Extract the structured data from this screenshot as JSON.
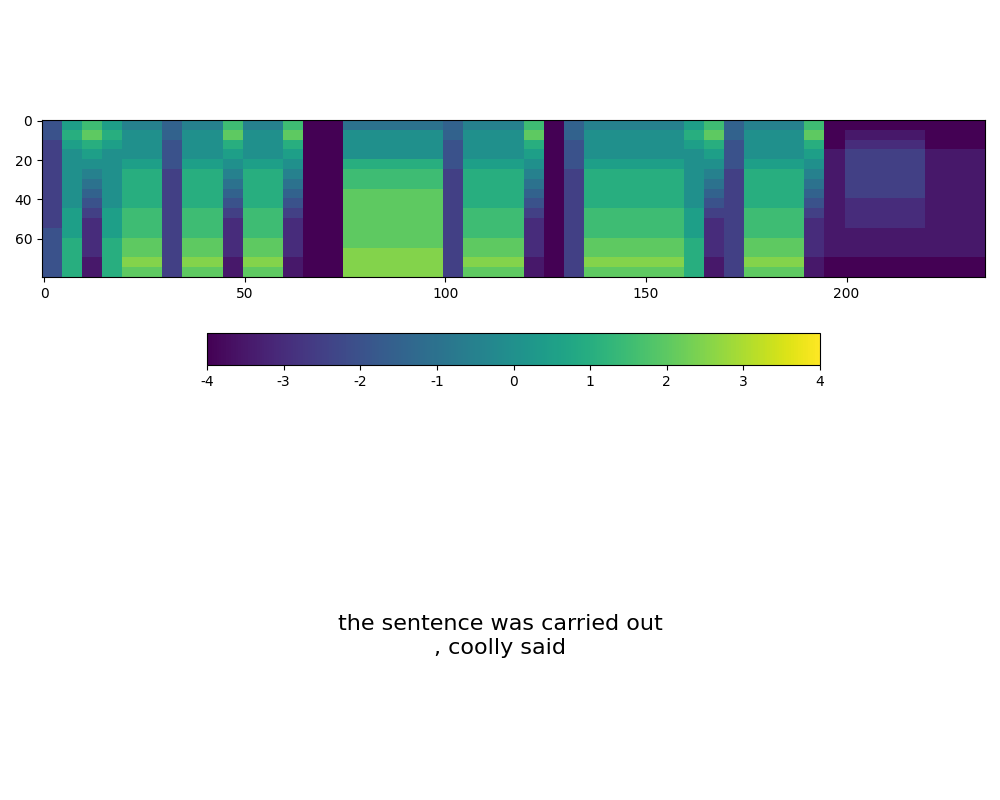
{
  "chart_data": {
    "type": "heatmap",
    "text": "the sentence was carried out\n, coolly said",
    "xlim": [
      -0.5,
      234.5
    ],
    "ylim": [
      79.5,
      -0.5
    ],
    "xticks": [
      0,
      50,
      100,
      150,
      200
    ],
    "yticks": [
      0,
      20,
      40,
      60
    ],
    "colorbar": {
      "range": [
        -4,
        4
      ],
      "ticks": [
        -4,
        -3,
        -2,
        -1,
        0,
        1,
        2,
        3,
        4
      ]
    },
    "cells": [
      [
        -2,
        0.5,
        1.5,
        0.5,
        -0.5,
        -0.5,
        -1.5,
        -0.5,
        -0.5,
        1.5,
        -0.5,
        -0.5,
        1.5,
        -4,
        -4,
        -1,
        -1,
        -1,
        -1,
        -1,
        -1.5,
        -0.5,
        -0.5,
        -0.5,
        1.5,
        -4,
        -1.5,
        -0.5,
        -0.5,
        -0.5,
        -0.5,
        -0.5,
        0.5,
        1.5,
        -1.5,
        -0.5,
        -0.5,
        -0.5,
        1.5,
        -4,
        -4,
        -4,
        -4,
        -4,
        -4,
        -4,
        -4
      ],
      [
        -2,
        1,
        2,
        1,
        0,
        0,
        -1.5,
        0,
        0,
        2,
        0,
        0,
        2,
        -4,
        -4,
        0,
        0,
        0,
        0,
        0,
        -1.5,
        0,
        0,
        0,
        2,
        -4,
        -1.5,
        0,
        0,
        0,
        0,
        0,
        1,
        2,
        -1.5,
        0,
        0,
        0,
        2,
        -4,
        -3.5,
        -3.5,
        -3.5,
        -3.5,
        -4,
        -4,
        -4
      ],
      [
        -2.5,
        0.5,
        1,
        0.5,
        0,
        0,
        -2,
        0,
        0,
        1,
        0,
        0,
        1,
        -4,
        -4,
        0,
        0,
        0,
        0,
        0,
        -2,
        0,
        0,
        0,
        1,
        -4,
        -2,
        0,
        0,
        0,
        0,
        0,
        0.5,
        1,
        -2,
        0,
        0,
        0,
        1,
        -4,
        -3,
        -3,
        -3,
        -3,
        -4,
        -4,
        -4
      ],
      [
        -2.5,
        0,
        0.5,
        0,
        0,
        0,
        -2,
        0,
        0,
        0.5,
        0,
        0,
        0.5,
        -4,
        -4,
        0,
        0,
        0,
        0,
        0,
        -2,
        0,
        0,
        0,
        0.5,
        -4,
        -2,
        0,
        0,
        0,
        0,
        0,
        0,
        0.5,
        -2,
        0,
        0,
        0,
        0.5,
        -3.5,
        -2.5,
        -2.5,
        -2.5,
        -2.5,
        -3.5,
        -3.5,
        -3.5
      ],
      [
        -2.5,
        0,
        0,
        0,
        0.5,
        0.5,
        -2,
        0.5,
        0.5,
        0,
        0.5,
        0.5,
        0,
        -4,
        -4,
        1,
        1,
        1,
        1,
        1,
        -2,
        0.5,
        0.5,
        0.5,
        0,
        -4,
        -2,
        0.5,
        0.5,
        0.5,
        0.5,
        0.5,
        0,
        0,
        -2,
        0.5,
        0.5,
        0.5,
        0,
        -3.5,
        -2.5,
        -2.5,
        -2.5,
        -2.5,
        -3.5,
        -3.5,
        -3.5
      ],
      [
        -2.5,
        0,
        -0.5,
        0,
        1,
        1,
        -2.5,
        1,
        1,
        -0.5,
        1,
        1,
        -0.5,
        -4,
        -4,
        1.5,
        1.5,
        1.5,
        1.5,
        1.5,
        -2.5,
        1,
        1,
        1,
        -0.5,
        -4,
        -2.5,
        1,
        1,
        1,
        1,
        1,
        0,
        -0.5,
        -2.5,
        1,
        1,
        1,
        -0.5,
        -3.5,
        -2.5,
        -2.5,
        -2.5,
        -2.5,
        -3.5,
        -3.5,
        -3.5
      ],
      [
        -2.5,
        0,
        -1,
        0,
        1,
        1,
        -2.5,
        1,
        1,
        -1,
        1,
        1,
        -1,
        -4,
        -4,
        1.5,
        1.5,
        1.5,
        1.5,
        1.5,
        -2.5,
        1,
        1,
        1,
        -1,
        -4,
        -2.5,
        1,
        1,
        1,
        1,
        1,
        0,
        -1,
        -2.5,
        1,
        1,
        1,
        -1,
        -3.5,
        -2.5,
        -2.5,
        -2.5,
        -2.5,
        -3.5,
        -3.5,
        -3.5
      ],
      [
        -2.5,
        0,
        -1.5,
        0,
        1,
        1,
        -2.5,
        1,
        1,
        -1.5,
        1,
        1,
        -1.5,
        -4,
        -4,
        2,
        2,
        2,
        2,
        2,
        -2.5,
        1,
        1,
        1,
        -1.5,
        -4,
        -2.5,
        1,
        1,
        1,
        1,
        1,
        0,
        -1.5,
        -2.5,
        1,
        1,
        1,
        -1.5,
        -3.5,
        -2.5,
        -2.5,
        -2.5,
        -2.5,
        -3.5,
        -3.5,
        -3.5
      ],
      [
        -2.5,
        0,
        -2,
        0,
        1,
        1,
        -2.5,
        1,
        1,
        -2,
        1,
        1,
        -2,
        -4,
        -4,
        2,
        2,
        2,
        2,
        2,
        -2.5,
        1,
        1,
        1,
        -2,
        -4,
        -2.5,
        1,
        1,
        1,
        1,
        1,
        0,
        -2,
        -2.5,
        1,
        1,
        1,
        -2,
        -3.5,
        -3,
        -3,
        -3,
        -3,
        -3.5,
        -3.5,
        -3.5
      ],
      [
        -2.5,
        0.5,
        -2.5,
        0.5,
        1.5,
        1.5,
        -2.5,
        1.5,
        1.5,
        -2.5,
        1.5,
        1.5,
        -2.5,
        -4,
        -4,
        2,
        2,
        2,
        2,
        2,
        -2.5,
        1.5,
        1.5,
        1.5,
        -2.5,
        -4,
        -2.5,
        1.5,
        1.5,
        1.5,
        1.5,
        1.5,
        0.5,
        -2.5,
        -2.5,
        1.5,
        1.5,
        1.5,
        -2.5,
        -3.5,
        -3,
        -3,
        -3,
        -3,
        -3.5,
        -3.5,
        -3.5
      ],
      [
        -2.5,
        0.5,
        -3,
        0.5,
        1.5,
        1.5,
        -2.5,
        1.5,
        1.5,
        -3,
        1.5,
        1.5,
        -3,
        -4,
        -4,
        2,
        2,
        2,
        2,
        2,
        -2.5,
        1.5,
        1.5,
        1.5,
        -3,
        -4,
        -2.5,
        1.5,
        1.5,
        1.5,
        1.5,
        1.5,
        0.5,
        -3,
        -2.5,
        1.5,
        1.5,
        1.5,
        -3,
        -3.5,
        -3,
        -3,
        -3,
        -3,
        -3.5,
        -3.5,
        -3.5
      ],
      [
        -2,
        0.5,
        -3,
        0.5,
        1.5,
        1.5,
        -2.5,
        1.5,
        1.5,
        -3,
        1.5,
        1.5,
        -3,
        -4,
        -4,
        2,
        2,
        2,
        2,
        2,
        -2.5,
        1.5,
        1.5,
        1.5,
        -3,
        -4,
        -2.5,
        1.5,
        1.5,
        1.5,
        1.5,
        1.5,
        0.5,
        -3,
        -2.5,
        1.5,
        1.5,
        1.5,
        -3,
        -3.5,
        -3.5,
        -3.5,
        -3.5,
        -3.5,
        -3.5,
        -3.5,
        -3.5
      ],
      [
        -2,
        1,
        -3,
        1,
        2,
        2,
        -2.5,
        2,
        2,
        -3,
        2,
        2,
        -3,
        -4,
        -4,
        2,
        2,
        2,
        2,
        2,
        -2.5,
        2,
        2,
        2,
        -3,
        -4,
        -2.5,
        2,
        2,
        2,
        2,
        2,
        1,
        -3,
        -2.5,
        2,
        2,
        2,
        -3,
        -3.5,
        -3.5,
        -3.5,
        -3.5,
        -3.5,
        -3.5,
        -3.5,
        -3.5
      ],
      [
        -2,
        1,
        -3,
        1,
        2,
        2,
        -2.5,
        2,
        2,
        -3,
        2,
        2,
        -3,
        -4,
        -4,
        2.5,
        2.5,
        2.5,
        2.5,
        2.5,
        -2.5,
        2,
        2,
        2,
        -3,
        -4,
        -2.5,
        2,
        2,
        2,
        2,
        2,
        1,
        -3,
        -2.5,
        2,
        2,
        2,
        -3,
        -3.5,
        -3.5,
        -3.5,
        -3.5,
        -3.5,
        -3.5,
        -3.5,
        -3.5
      ],
      [
        -2,
        1,
        -3.5,
        1,
        2.5,
        2.5,
        -2.5,
        2.5,
        2.5,
        -3.5,
        2.5,
        2.5,
        -3.5,
        -4,
        -4,
        2.5,
        2.5,
        2.5,
        2.5,
        2.5,
        -2.5,
        2.5,
        2.5,
        2.5,
        -3.5,
        -4,
        -2.5,
        2.5,
        2.5,
        2.5,
        2.5,
        2.5,
        1,
        -3.5,
        -2.5,
        2.5,
        2.5,
        2.5,
        -3.5,
        -4,
        -4,
        -4,
        -4,
        -4,
        -4,
        -4,
        -4
      ],
      [
        -2,
        1,
        -3.5,
        1,
        2,
        2,
        -2.5,
        2,
        2,
        -3.5,
        2,
        2,
        -3.5,
        -4,
        -4,
        2.5,
        2.5,
        2.5,
        2.5,
        2.5,
        -2.5,
        2,
        2,
        2,
        -3.5,
        -4,
        -2.5,
        2,
        2,
        2,
        2,
        2,
        1,
        -3.5,
        -2.5,
        2,
        2,
        2,
        -3.5,
        -4,
        -4,
        -4,
        -4,
        -4,
        -4,
        -4,
        -4
      ]
    ]
  }
}
